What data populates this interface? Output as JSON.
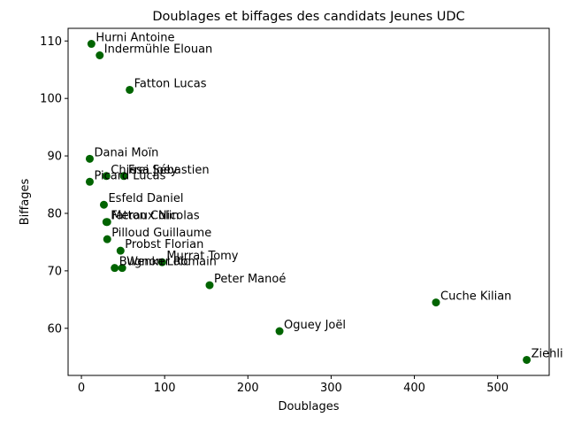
{
  "chart_data": {
    "type": "scatter",
    "title": "Doublages et biffages des candidats Jeunes UDC",
    "xlabel": "Doublages",
    "ylabel": "Biffages",
    "xlim": [
      -16,
      562
    ],
    "ylim": [
      51.8,
      112.2
    ],
    "xticks": [
      0,
      100,
      200,
      300,
      400,
      500
    ],
    "yticks": [
      60,
      70,
      80,
      90,
      100,
      110
    ],
    "grid": false,
    "marker_color": "#006400",
    "points": [
      {
        "label": "Hurni Antoine",
        "x": 12,
        "y": 109.5
      },
      {
        "label": "Indermühle Elouan",
        "x": 22,
        "y": 107.5
      },
      {
        "label": "Fatton Lucas",
        "x": 58,
        "y": 101.5
      },
      {
        "label": "Danai Moïn",
        "x": 10,
        "y": 89.5
      },
      {
        "label": "Chiesa Joey",
        "x": 30,
        "y": 86.5
      },
      {
        "label": "Frei Sébastien",
        "x": 51,
        "y": 86.5
      },
      {
        "label": "Picard Lucas",
        "x": 10,
        "y": 85.5
      },
      {
        "label": "Esfeld Daniel",
        "x": 27,
        "y": 81.5
      },
      {
        "label": "Fatton Colin",
        "x": 30,
        "y": 78.5
      },
      {
        "label": "Meraux Nicolas",
        "x": 31,
        "y": 78.5
      },
      {
        "label": "Pilloud Guillaume",
        "x": 31,
        "y": 75.5
      },
      {
        "label": "Probst Florian",
        "x": 47,
        "y": 73.5
      },
      {
        "label": "Murrat Tomy",
        "x": 97,
        "y": 71.5
      },
      {
        "label": "Bugnon Loïc",
        "x": 40,
        "y": 70.5
      },
      {
        "label": "Wenker Romain",
        "x": 49,
        "y": 70.5
      },
      {
        "label": "Peter Manoé",
        "x": 154,
        "y": 67.5
      },
      {
        "label": "Cuche Kilian",
        "x": 426,
        "y": 64.5
      },
      {
        "label": "Oguey Joël",
        "x": 238,
        "y": 59.5
      },
      {
        "label": "Ziehli",
        "x": 535,
        "y": 54.5
      }
    ]
  }
}
